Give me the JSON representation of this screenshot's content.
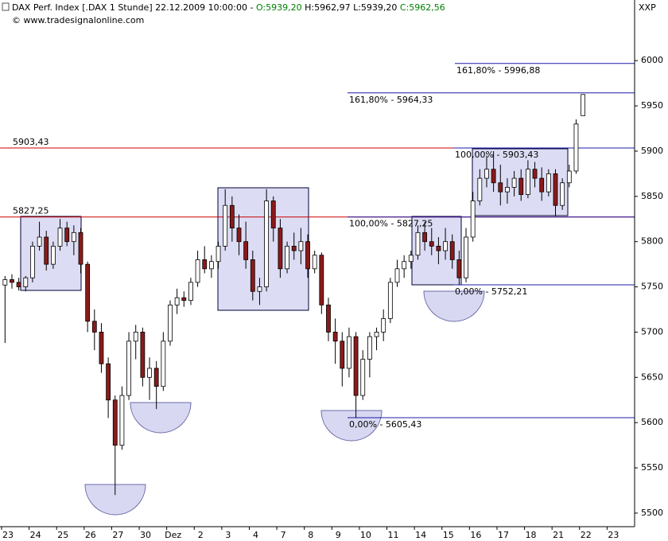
{
  "header": {
    "title": "DAX Perf. Index [.DAX  1 Stunde] 22.12.2009 10:00:00 -",
    "open": "O:5939,20",
    "high": "H:5962,97",
    "low": "L:5939,20",
    "close": "C:5962,56",
    "source": "© www.tradesignalonline.com",
    "corner": "XXP"
  },
  "chart_data": {
    "type": "candlestick",
    "categories": [
      "23",
      null,
      null,
      null,
      "24",
      null,
      null,
      null,
      "25",
      null,
      null,
      null,
      "26",
      null,
      null,
      null,
      "27",
      null,
      null,
      null,
      "30",
      null,
      null,
      null,
      "Dez",
      null,
      null,
      null,
      "2",
      null,
      null,
      null,
      "3",
      null,
      null,
      null,
      "4",
      null,
      null,
      null,
      "7",
      null,
      null,
      null,
      "8",
      null,
      null,
      null,
      "9",
      null,
      null,
      null,
      "10",
      null,
      null,
      null,
      "11",
      null,
      null,
      null,
      "14",
      null,
      null,
      null,
      "15",
      null,
      null,
      null,
      "16",
      null,
      null,
      null,
      "17",
      null,
      null,
      null,
      "18",
      null,
      null,
      null,
      "21",
      null,
      null,
      null,
      "22",
      null,
      null,
      null,
      "23",
      null,
      null,
      null
    ],
    "open": [
      5752,
      5758,
      5755,
      5750,
      5760,
      5795,
      5805,
      5775,
      5795,
      5815,
      5800,
      5810,
      5775,
      5712,
      5700,
      5665,
      5625,
      5575,
      5630,
      5690,
      5700,
      5650,
      5660,
      5640,
      5690,
      5730,
      5738,
      5735,
      5755,
      5780,
      5770,
      5778,
      5795,
      5840,
      5815,
      5800,
      5780,
      5745,
      5750,
      5845,
      5815,
      5770,
      5795,
      5790,
      5800,
      5770,
      5785,
      5730,
      5700,
      5690,
      5660,
      5695,
      5630,
      5670,
      5695,
      5700,
      5715,
      5755,
      5770,
      5778,
      5785,
      5810,
      5800,
      5795,
      5790,
      5800,
      5780,
      5760,
      5805,
      5845,
      5870,
      5880,
      5865,
      5855,
      5860,
      5870,
      5852,
      5880,
      5870,
      5855,
      5875,
      5840,
      5865,
      5878,
      5939.2,
      null,
      null,
      null,
      null,
      null,
      null,
      null
    ],
    "high": [
      5762,
      5764,
      5760,
      5762,
      5800,
      5822,
      5812,
      5800,
      5825,
      5822,
      5818,
      5815,
      5778,
      5725,
      5710,
      5672,
      5630,
      5640,
      5700,
      5708,
      5705,
      5672,
      5668,
      5700,
      5735,
      5748,
      5745,
      5760,
      5790,
      5795,
      5785,
      5800,
      5858,
      5850,
      5830,
      5822,
      5790,
      5760,
      5858,
      5850,
      5825,
      5800,
      5810,
      5815,
      5808,
      5790,
      5788,
      5738,
      5715,
      5700,
      5705,
      5700,
      5680,
      5700,
      5705,
      5725,
      5760,
      5780,
      5785,
      5790,
      5818,
      5822,
      5815,
      5805,
      5815,
      5808,
      5790,
      5815,
      5855,
      5880,
      5895,
      5900,
      5885,
      5870,
      5878,
      5880,
      5890,
      5888,
      5882,
      5880,
      5880,
      5870,
      5885,
      5935,
      5962.97,
      null,
      null,
      null,
      null,
      null,
      null,
      null
    ],
    "low": [
      5688,
      5748,
      5746,
      5745,
      5755,
      5790,
      5768,
      5770,
      5790,
      5795,
      5785,
      5765,
      5700,
      5680,
      5655,
      5605,
      5520,
      5570,
      5625,
      5670,
      5640,
      5625,
      5615,
      5635,
      5685,
      5720,
      5728,
      5730,
      5750,
      5765,
      5760,
      5770,
      5790,
      5800,
      5785,
      5770,
      5735,
      5730,
      5745,
      5800,
      5760,
      5765,
      5780,
      5775,
      5760,
      5765,
      5720,
      5690,
      5665,
      5640,
      5650,
      5605,
      5625,
      5650,
      5680,
      5690,
      5710,
      5750,
      5760,
      5770,
      5780,
      5790,
      5785,
      5775,
      5780,
      5770,
      5752,
      5755,
      5800,
      5840,
      5860,
      5855,
      5840,
      5842,
      5850,
      5845,
      5848,
      5860,
      5845,
      5850,
      5828,
      5835,
      5860,
      5875,
      5939.2,
      null,
      null,
      null,
      null,
      null,
      null,
      null
    ],
    "close": [
      5758,
      5755,
      5750,
      5760,
      5795,
      5805,
      5775,
      5795,
      5815,
      5800,
      5810,
      5775,
      5712,
      5700,
      5665,
      5625,
      5575,
      5630,
      5690,
      5700,
      5650,
      5660,
      5640,
      5690,
      5730,
      5738,
      5735,
      5755,
      5780,
      5770,
      5778,
      5795,
      5840,
      5815,
      5800,
      5780,
      5745,
      5750,
      5845,
      5815,
      5770,
      5795,
      5790,
      5800,
      5770,
      5785,
      5730,
      5700,
      5690,
      5660,
      5695,
      5630,
      5670,
      5695,
      5700,
      5715,
      5755,
      5770,
      5778,
      5785,
      5810,
      5800,
      5795,
      5790,
      5800,
      5780,
      5760,
      5805,
      5845,
      5870,
      5880,
      5865,
      5855,
      5860,
      5870,
      5852,
      5880,
      5870,
      5855,
      5875,
      5840,
      5865,
      5878,
      5930,
      5962.56,
      null,
      null,
      null,
      null,
      null,
      null,
      null
    ],
    "up_color": "#ffffff",
    "down_color": "#8b1a1a",
    "ylim": [
      5485,
      6067
    ],
    "yticks": [
      5500,
      5550,
      5600,
      5650,
      5700,
      5750,
      5800,
      5850,
      5900,
      5950,
      6000
    ],
    "levels": [
      {
        "value": 5903.43,
        "label": "5903,43",
        "color": "#cc0000"
      },
      {
        "value": 5827.25,
        "label": "5827,25",
        "color": "#cc0000"
      },
      {
        "value": 5996.88,
        "label": "161,80% - 5996,88",
        "color": "#1c1ca8"
      },
      {
        "value": 5964.33,
        "label": "161,80% - 5964,33",
        "color": "#1c1ca8"
      },
      {
        "value": 5903.43,
        "label": "100,00% - 5903,43",
        "color": "#1c1ca8"
      },
      {
        "value": 5827.25,
        "label": "100,00% - 5827,25",
        "color": "#1c1ca8"
      },
      {
        "value": 5752.21,
        "label": "0,00% - 5752,21",
        "color": "#1c1ca8"
      },
      {
        "value": 5605.43,
        "label": "0,00% - 5605,43",
        "color": "#1c1ca8"
      }
    ]
  }
}
